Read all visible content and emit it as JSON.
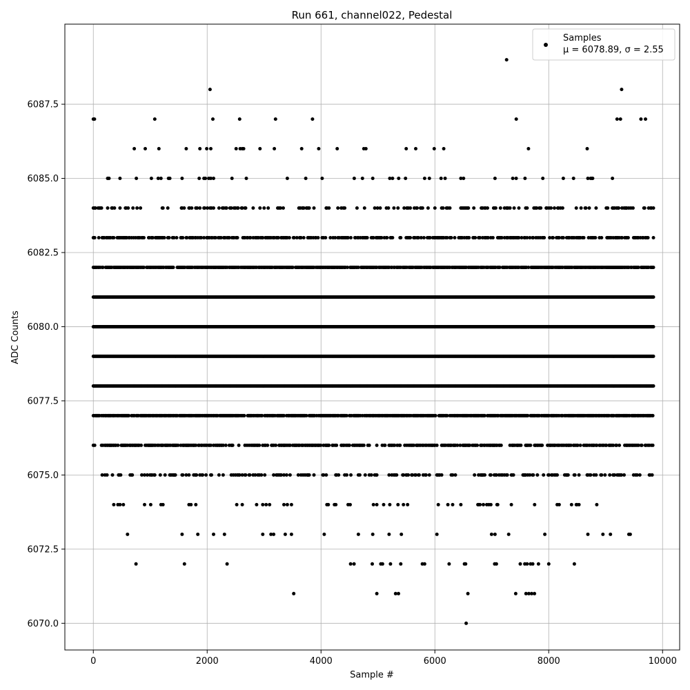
{
  "chart_data": {
    "type": "scatter",
    "title": "Run 661, channel022, Pedestal",
    "xlabel": "Sample #",
    "ylabel": "ADC Counts",
    "xlim": [
      -500,
      10300
    ],
    "ylim": [
      6069.1,
      6090.2
    ],
    "xticks": [
      0,
      2000,
      4000,
      6000,
      8000,
      10000
    ],
    "xtick_labels": [
      "0",
      "2000",
      "4000",
      "6000",
      "8000",
      "10000"
    ],
    "yticks": [
      6070.0,
      6072.5,
      6075.0,
      6077.5,
      6080.0,
      6082.5,
      6085.0,
      6087.5
    ],
    "ytick_labels": [
      "6070.0",
      "6072.5",
      "6075.0",
      "6077.5",
      "6080.0",
      "6082.5",
      "6085.0",
      "6087.5"
    ],
    "grid": true,
    "legend_position": "top-right",
    "series": [
      {
        "name": "Samples",
        "stats_label": "μ = 6078.89, σ = 2.55",
        "color": "#000000",
        "x_range": [
          0,
          9850
        ],
        "levels": [
          6070,
          6071,
          6072,
          6073,
          6074,
          6075,
          6076,
          6077,
          6078,
          6079,
          6080,
          6081,
          6082,
          6083,
          6084,
          6085,
          6086,
          6087,
          6088,
          6089
        ],
        "level_density": [
          0.0005,
          0.003,
          0.006,
          0.03,
          0.06,
          0.25,
          0.5,
          0.75,
          1.0,
          1.0,
          1.0,
          1.0,
          0.75,
          0.45,
          0.2,
          0.05,
          0.025,
          0.008,
          0.002,
          0.001
        ],
        "sparse_points": [
          [
            6550,
            6070
          ],
          [
            3520,
            6071
          ],
          [
            4980,
            6071
          ],
          [
            5310,
            6071
          ],
          [
            5360,
            6071
          ],
          [
            6580,
            6071
          ],
          [
            7420,
            6071
          ],
          [
            7600,
            6071
          ],
          [
            7650,
            6071
          ],
          [
            7700,
            6071
          ],
          [
            7750,
            6071
          ],
          [
            750,
            6072
          ],
          [
            1600,
            6072
          ],
          [
            2350,
            6072
          ],
          [
            4520,
            6072
          ],
          [
            4580,
            6072
          ],
          [
            4900,
            6072
          ],
          [
            5050,
            6072
          ],
          [
            5080,
            6072
          ],
          [
            5220,
            6072
          ],
          [
            5400,
            6072
          ],
          [
            5780,
            6072
          ],
          [
            5820,
            6072
          ],
          [
            6250,
            6072
          ],
          [
            6520,
            6072
          ],
          [
            6540,
            6072
          ],
          [
            7050,
            6072
          ],
          [
            7080,
            6072
          ],
          [
            7500,
            6072
          ],
          [
            7580,
            6072
          ],
          [
            7620,
            6072
          ],
          [
            7680,
            6072
          ],
          [
            7720,
            6072
          ],
          [
            7820,
            6072
          ],
          [
            8000,
            6072
          ],
          [
            8450,
            6072
          ],
          [
            0,
            6087
          ],
          [
            20,
            6087
          ],
          [
            1080,
            6087
          ],
          [
            2100,
            6087
          ],
          [
            2570,
            6087
          ],
          [
            3200,
            6087
          ],
          [
            3850,
            6087
          ],
          [
            7430,
            6087
          ],
          [
            9200,
            6087
          ],
          [
            9260,
            6087
          ],
          [
            9620,
            6087
          ],
          [
            9700,
            6087
          ],
          [
            2050,
            6088
          ],
          [
            9280,
            6088
          ],
          [
            7260,
            6089
          ]
        ]
      }
    ]
  }
}
